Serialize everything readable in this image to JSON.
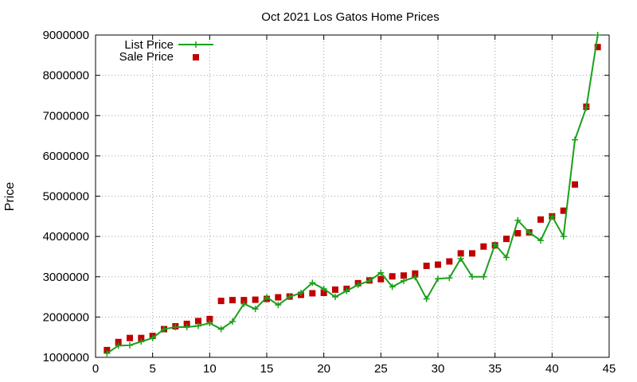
{
  "chart_data": {
    "type": "line",
    "title": "Oct 2021 Los Gatos Home Prices",
    "xlabel": "",
    "ylabel": "Price",
    "xlim": [
      0,
      45
    ],
    "ylim": [
      1000000,
      9000000
    ],
    "x_ticks": [
      0,
      5,
      10,
      15,
      20,
      25,
      30,
      35,
      40,
      45
    ],
    "y_ticks": [
      1000000,
      2000000,
      3000000,
      4000000,
      5000000,
      6000000,
      7000000,
      8000000,
      9000000
    ],
    "grid": true,
    "legend_position": "top-left",
    "series": [
      {
        "name": "List Price",
        "style": "line+cross",
        "color": "#1aa01a",
        "x": [
          1,
          2,
          3,
          4,
          5,
          6,
          7,
          8,
          9,
          10,
          11,
          12,
          13,
          14,
          15,
          16,
          17,
          18,
          19,
          20,
          21,
          22,
          23,
          24,
          25,
          26,
          27,
          28,
          29,
          30,
          31,
          32,
          33,
          34,
          35,
          36,
          37,
          38,
          39,
          40,
          41,
          42,
          43,
          44
        ],
        "y": [
          1100000,
          1290000,
          1300000,
          1390000,
          1480000,
          1700000,
          1750000,
          1750000,
          1780000,
          1850000,
          1700000,
          1890000,
          2330000,
          2200000,
          2490000,
          2300000,
          2500000,
          2600000,
          2850000,
          2700000,
          2500000,
          2650000,
          2800000,
          2900000,
          3100000,
          2750000,
          2900000,
          2990000,
          2450000,
          2950000,
          2970000,
          3450000,
          3000000,
          3000000,
          3800000,
          3480000,
          4400000,
          4100000,
          3900000,
          4500000,
          4000000,
          6400000,
          7200000,
          9000000
        ]
      },
      {
        "name": "Sale Price",
        "style": "square",
        "color": "#c00000",
        "x": [
          1,
          2,
          3,
          4,
          5,
          6,
          7,
          8,
          9,
          10,
          11,
          12,
          13,
          14,
          15,
          16,
          17,
          18,
          19,
          20,
          21,
          22,
          23,
          24,
          25,
          26,
          27,
          28,
          29,
          30,
          31,
          32,
          33,
          34,
          35,
          36,
          37,
          38,
          39,
          40,
          41,
          42,
          43,
          44
        ],
        "y": [
          1180000,
          1380000,
          1480000,
          1480000,
          1530000,
          1700000,
          1770000,
          1830000,
          1900000,
          1950000,
          2400000,
          2420000,
          2420000,
          2430000,
          2450000,
          2490000,
          2510000,
          2550000,
          2590000,
          2600000,
          2680000,
          2700000,
          2840000,
          2910000,
          2940000,
          3010000,
          3030000,
          3080000,
          3270000,
          3300000,
          3380000,
          3580000,
          3580000,
          3750000,
          3780000,
          3940000,
          4080000,
          4100000,
          4420000,
          4500000,
          4640000,
          5290000,
          7220000,
          8700000
        ]
      }
    ]
  }
}
